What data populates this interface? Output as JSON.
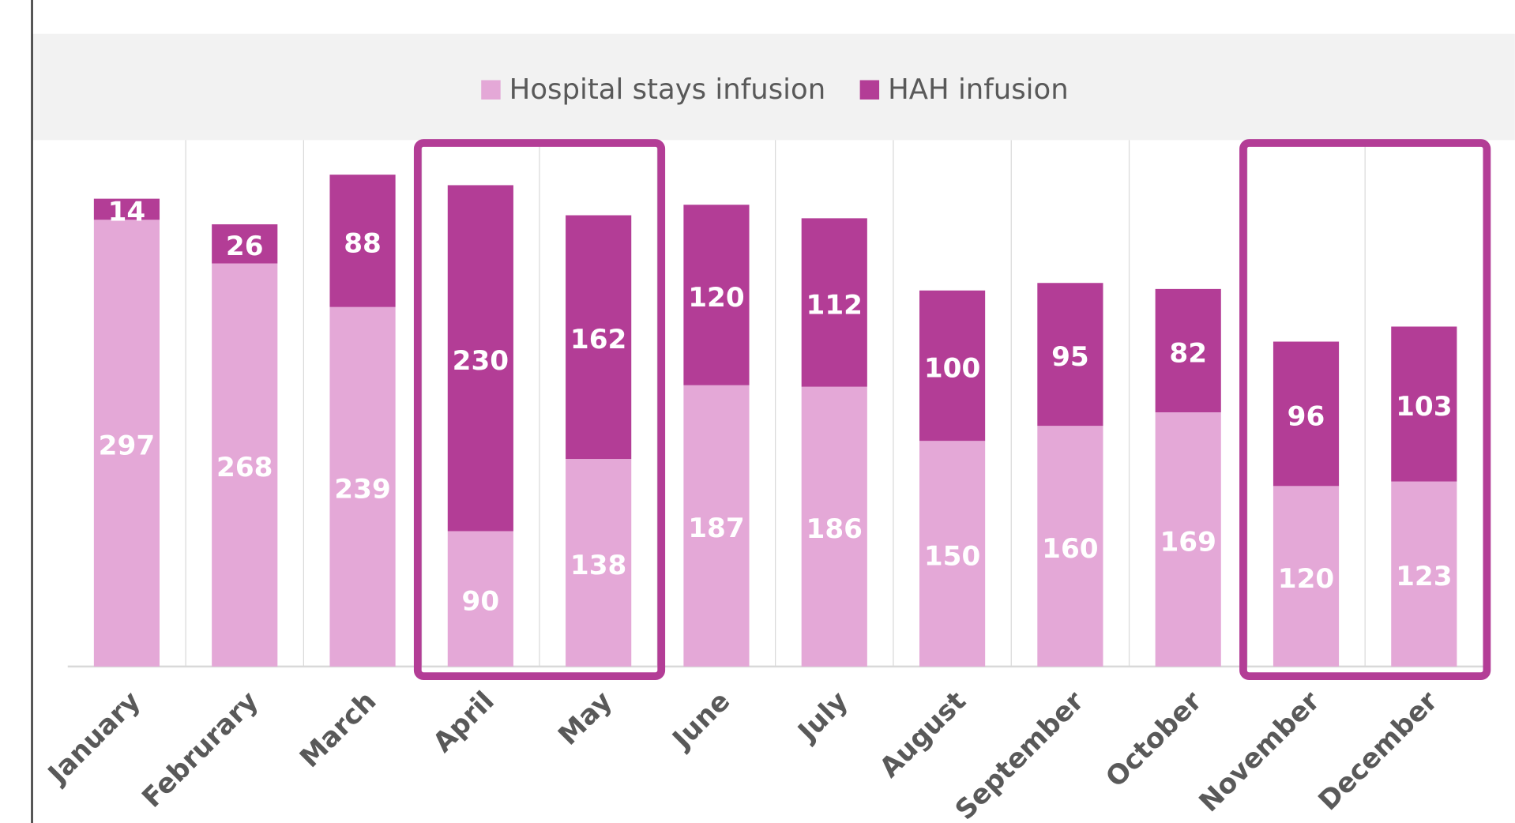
{
  "chart_data": {
    "type": "stacked_bar",
    "categories": [
      "January",
      "Februrary",
      "March",
      "April",
      "May",
      "June",
      "July",
      "August",
      "September",
      "October",
      "November",
      "December"
    ],
    "series": [
      {
        "name": "Hospital stays infusion",
        "color": "#e4a8d7",
        "values": [
          297,
          268,
          239,
          90,
          138,
          187,
          186,
          150,
          160,
          169,
          120,
          123
        ]
      },
      {
        "name": "HAH infusion",
        "color": "#b33d96",
        "values": [
          14,
          26,
          88,
          230,
          162,
          120,
          112,
          100,
          95,
          82,
          96,
          103
        ]
      }
    ],
    "ylim": [
      0,
      350
    ],
    "grid": true,
    "legend": "top",
    "highlight_groups": [
      [
        3,
        4
      ],
      [
        10,
        11
      ]
    ],
    "highlight_color": "#b33d96"
  }
}
